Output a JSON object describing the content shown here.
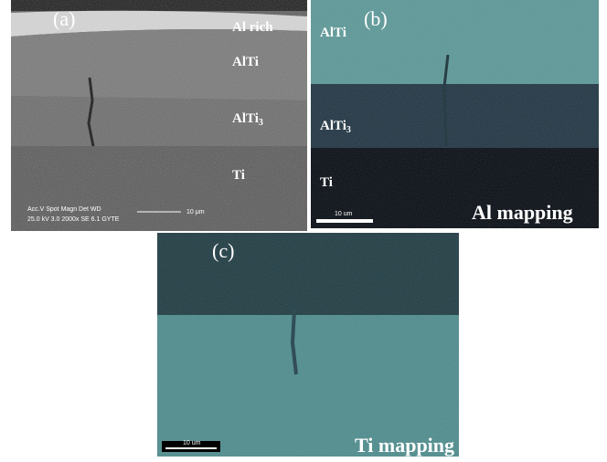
{
  "panel_a": {
    "label": "(a)",
    "layers": [
      {
        "text": "Al rich"
      },
      {
        "text": "AlTi"
      },
      {
        "text": "AlTi",
        "subscript": "3"
      },
      {
        "text": "Ti"
      }
    ],
    "info_header": "Acc.V  Spot Magn   Det  WD",
    "info_values": "25.0 kV 3.0  2000x   SE  6.1   GYTE",
    "scale": "10 μm"
  },
  "panel_b": {
    "label": "(b)",
    "layers": [
      {
        "text": "AlTi"
      },
      {
        "text": "AlTi",
        "subscript": "3"
      },
      {
        "text": "Ti"
      }
    ],
    "scale": "10 um",
    "caption": "Al mapping"
  },
  "panel_c": {
    "label": "(c)",
    "scale": "10 um",
    "caption": "Ti mapping"
  }
}
